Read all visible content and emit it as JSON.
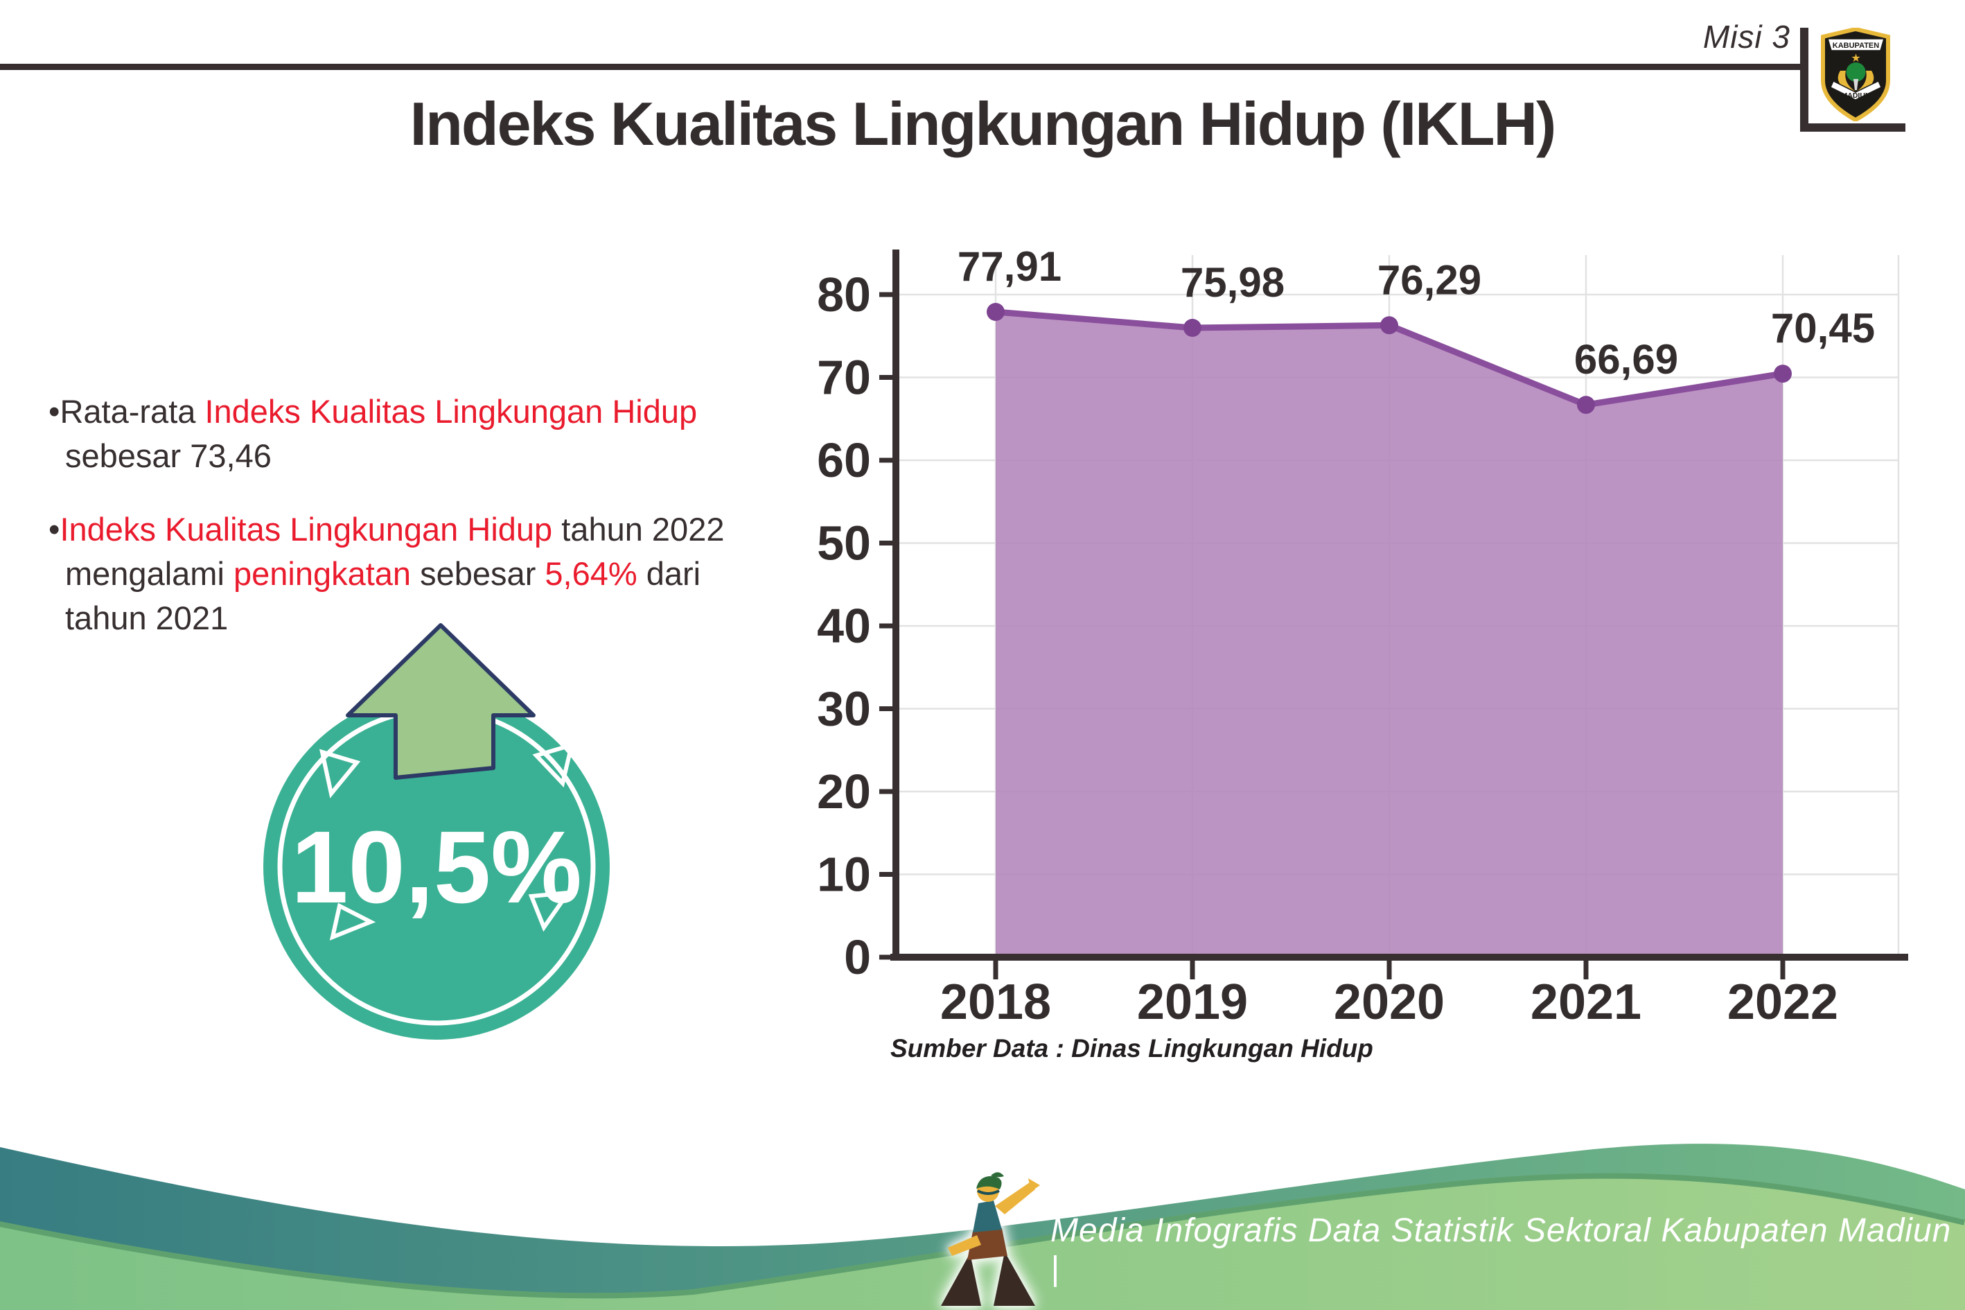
{
  "header": {
    "misi": "Misi 3",
    "title": "Indeks Kualitas Lingkungan Hidup (IKLH)"
  },
  "logo": {
    "text_top": "KABUPATEN",
    "text_bottom": "MADIUN"
  },
  "bullets": {
    "bullet_char": "•",
    "items": [
      {
        "lines": [
          [
            {
              "t": "Rata-rata ",
              "c": "dark"
            },
            {
              "t": "Indeks Kualitas Lingkungan Hidup",
              "c": "red"
            }
          ],
          [
            {
              "t": "sebesar 73,46",
              "c": "dark"
            }
          ]
        ]
      },
      {
        "lines": [
          [
            {
              "t": "Indeks Kualitas Lingkungan Hidup",
              "c": "red"
            },
            {
              "t": " tahun 2022",
              "c": "dark"
            }
          ],
          [
            {
              "t": "mengalami ",
              "c": "dark"
            },
            {
              "t": "peningkatan",
              "c": "red"
            },
            {
              "t": " sebesar ",
              "c": "dark"
            },
            {
              "t": "5,64%",
              "c": "red"
            },
            {
              "t": " dari",
              "c": "dark"
            }
          ],
          [
            {
              "t": "tahun 2021",
              "c": "dark"
            }
          ]
        ]
      }
    ]
  },
  "badge": {
    "value": "10,5%",
    "circle_color": "#3ab194",
    "ring_color": "#ffffff",
    "arrow_color": "#9dc78b",
    "arrow_outline": "#2c3a65"
  },
  "chart_data": {
    "type": "area",
    "title": "",
    "xlabel": "",
    "ylabel": "",
    "categories": [
      "2018",
      "2019",
      "2020",
      "2021",
      "2022"
    ],
    "series": [
      {
        "name": "IKLH",
        "values": [
          77.91,
          75.98,
          76.29,
          66.69,
          70.45
        ]
      }
    ],
    "value_labels": [
      "77,91",
      "75,98",
      "76,29",
      "66,69",
      "70,45"
    ],
    "ylim": [
      0,
      80
    ],
    "yticks": [
      0,
      10,
      20,
      30,
      40,
      50,
      60,
      70,
      80
    ],
    "grid": true,
    "legend": "none",
    "line_color": "#8a4f9c",
    "marker_color": "#7d4391",
    "fill_color": "#b588bd",
    "axis_color": "#372f30",
    "grid_color": "#e2e2e2",
    "label_color": "#342d2e"
  },
  "source_note": "Sumber Data : Dinas Lingkungan Hidup",
  "footer": {
    "text": "Media Infografis Data Statistik Sektoral Kabupaten Madiun |",
    "teal_left": "#377d82",
    "teal_right": "#74b987",
    "green_left": "#7ec287",
    "green_right": "#a3d18c",
    "rim_color": "#5fa16e"
  }
}
